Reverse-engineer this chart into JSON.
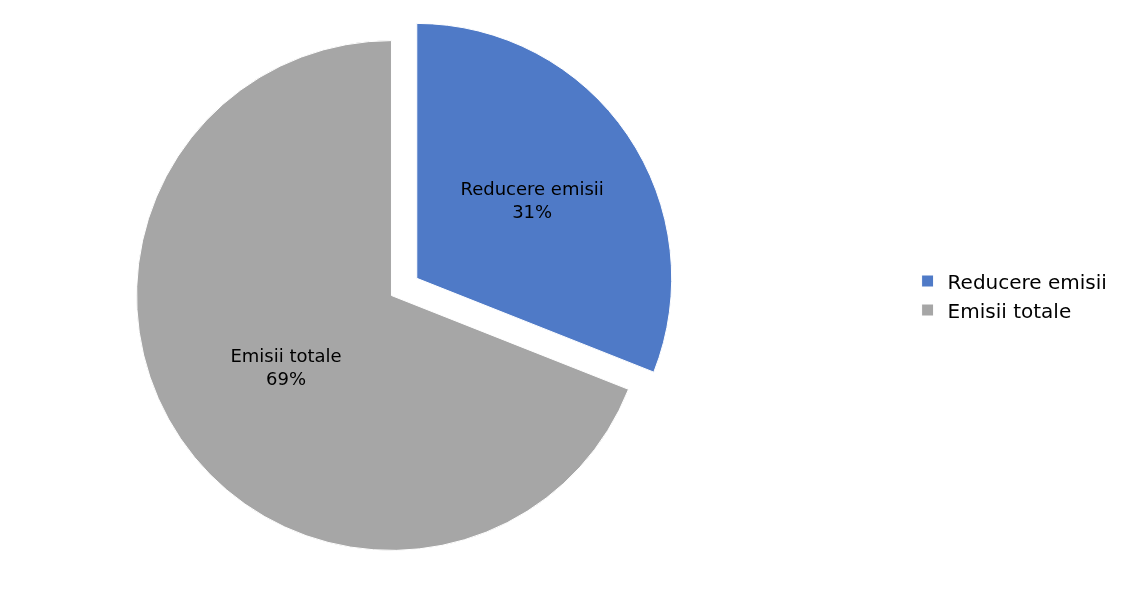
{
  "chart_data": {
    "type": "pie",
    "categories": [
      "Reducere emisii",
      "Emisii totale"
    ],
    "values": [
      31,
      69
    ],
    "value_labels": [
      "31%",
      "69%"
    ],
    "colors": [
      "#4f7ac7",
      "#a6a6a6"
    ],
    "legend": "right"
  }
}
